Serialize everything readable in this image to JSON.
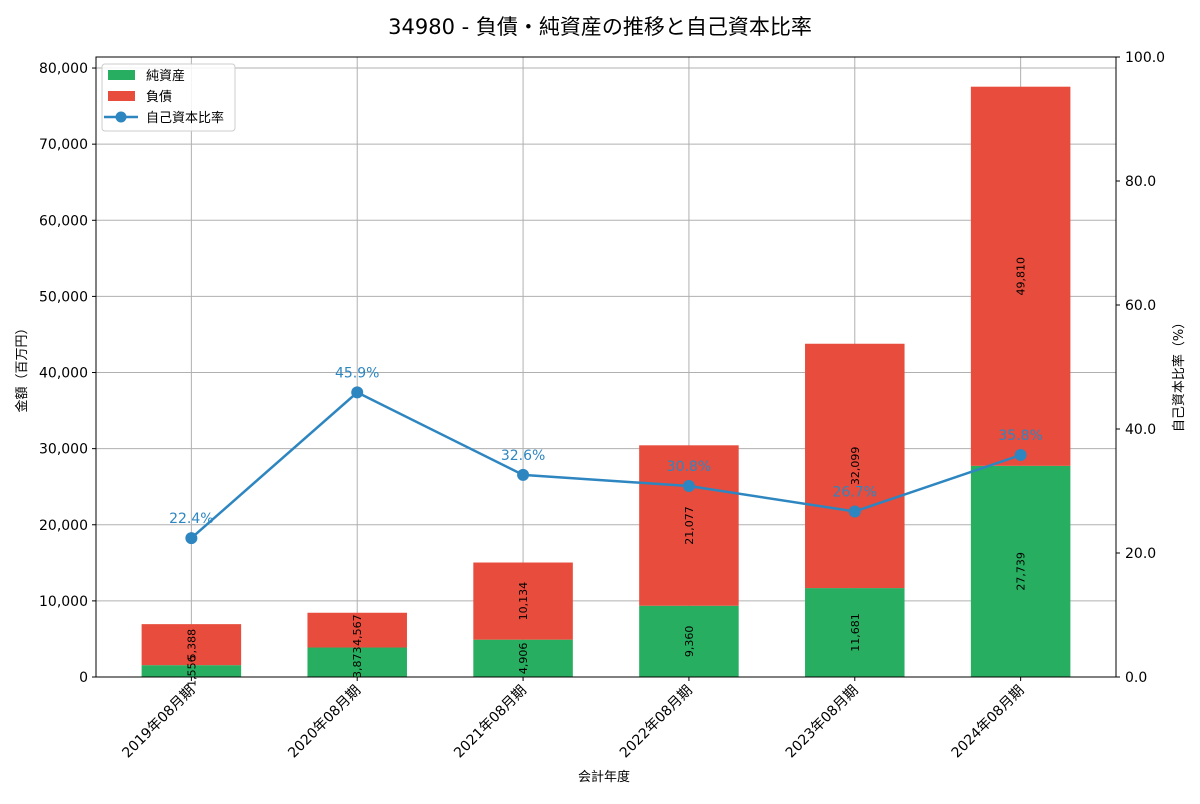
{
  "chart_data": {
    "type": "bar",
    "title": "34980 - 負債・純資産の推移と自己資本比率",
    "xlabel": "会計年度",
    "ylabel": "金額（百万円）",
    "y2label": "自己資本比率（%）",
    "ylim": [
      0,
      81450
    ],
    "y2lim": [
      0,
      100
    ],
    "grid": true,
    "legend_position": "top-left",
    "categories": [
      "2019年08月期",
      "2020年08月期",
      "2021年08月期",
      "2022年08月期",
      "2023年08月期",
      "2024年08月期"
    ],
    "yticks": [
      "0",
      "10,000",
      "20,000",
      "30,000",
      "40,000",
      "50,000",
      "60,000",
      "70,000",
      "80,000"
    ],
    "ytick_values": [
      0,
      10000,
      20000,
      30000,
      40000,
      50000,
      60000,
      70000,
      80000
    ],
    "y2ticks": [
      "0.0",
      "20.0",
      "40.0",
      "60.0",
      "80.0",
      "100.0"
    ],
    "y2tick_values": [
      0,
      20,
      40,
      60,
      80,
      100
    ],
    "series": [
      {
        "name": "純資産",
        "kind": "bar",
        "color": "#27ae60",
        "values": [
          1556,
          3873,
          4906,
          9360,
          11681,
          27739
        ],
        "labels": [
          "1,556",
          "3,873",
          "4,906",
          "9,360",
          "11,681",
          "27,739"
        ]
      },
      {
        "name": "負債",
        "kind": "bar",
        "color": "#e74c3c",
        "values": [
          5388,
          4567,
          10134,
          21077,
          32099,
          49810
        ],
        "labels": [
          "5,388",
          "4,567",
          "10,134",
          "21,077",
          "32,099",
          "49,810"
        ]
      },
      {
        "name": "自己資本比率",
        "kind": "line",
        "axis": "right",
        "color": "#2e86c1",
        "values": [
          22.4,
          45.9,
          32.6,
          30.8,
          26.7,
          35.8
        ],
        "labels": [
          "22.4%",
          "45.9%",
          "32.6%",
          "30.8%",
          "26.7%",
          "35.8%"
        ]
      }
    ]
  }
}
